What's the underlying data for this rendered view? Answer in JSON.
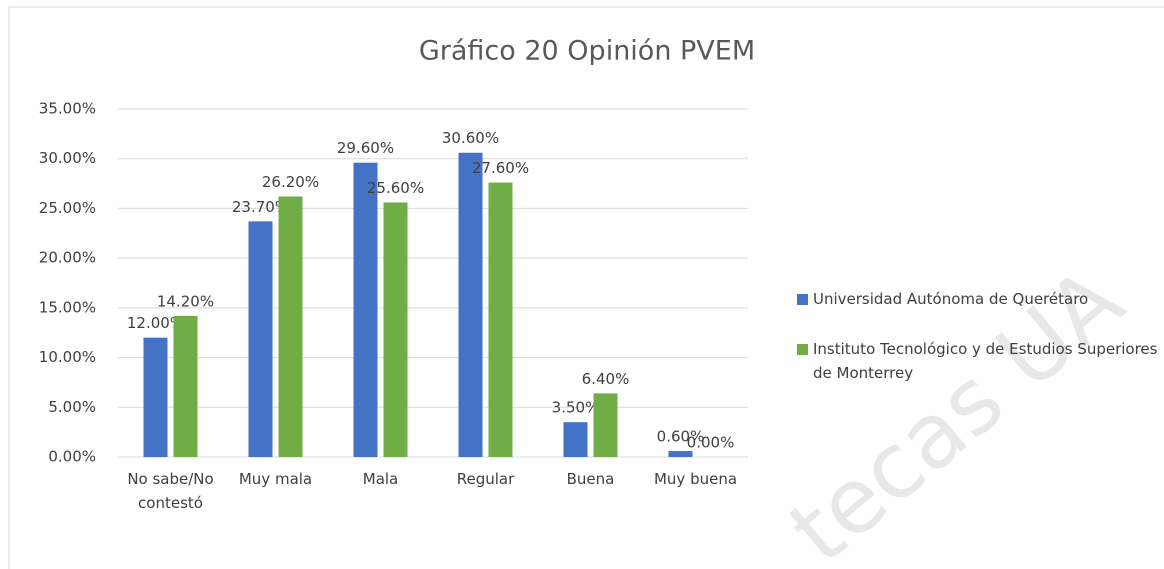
{
  "chart_data": {
    "type": "bar",
    "title": "Gráfico 20 Opinión PVEM",
    "categories": [
      "No sabe/No contestó",
      "Muy mala",
      "Mala",
      "Regular",
      "Buena",
      "Muy buena"
    ],
    "series": [
      {
        "name": "Universidad Autónoma de Querétaro",
        "color": "#4472c4",
        "values": [
          12,
          23.7,
          29.6,
          30.6,
          3.5,
          0.6
        ],
        "value_labels": [
          "12.00%",
          "23.70%",
          "29.60%",
          "30.60%",
          "3.50%",
          "0.60%"
        ]
      },
      {
        "name": "Instituto Tecnológico y de Estudios Superiores de Monterrey",
        "color": "#70ad47",
        "values": [
          14.2,
          26.2,
          25.6,
          27.6,
          6.4,
          0
        ],
        "value_labels": [
          "14.20%",
          "26.20%",
          "25.60%",
          "27.60%",
          "6.40%",
          "0.00%"
        ]
      }
    ],
    "ylim": [
      0,
      35
    ],
    "yticks": [
      {
        "value": 0,
        "label": "0.00%"
      },
      {
        "value": 5,
        "label": "5.00%"
      },
      {
        "value": 10,
        "label": "10.00%"
      },
      {
        "value": 15,
        "label": "15.00%"
      },
      {
        "value": 20,
        "label": "20.00%"
      },
      {
        "value": 25,
        "label": "25.00%"
      },
      {
        "value": 30,
        "label": "30.00%"
      },
      {
        "value": 35,
        "label": "35.00%"
      }
    ],
    "grid": true,
    "legend": "right",
    "watermark": "tecas UA"
  }
}
